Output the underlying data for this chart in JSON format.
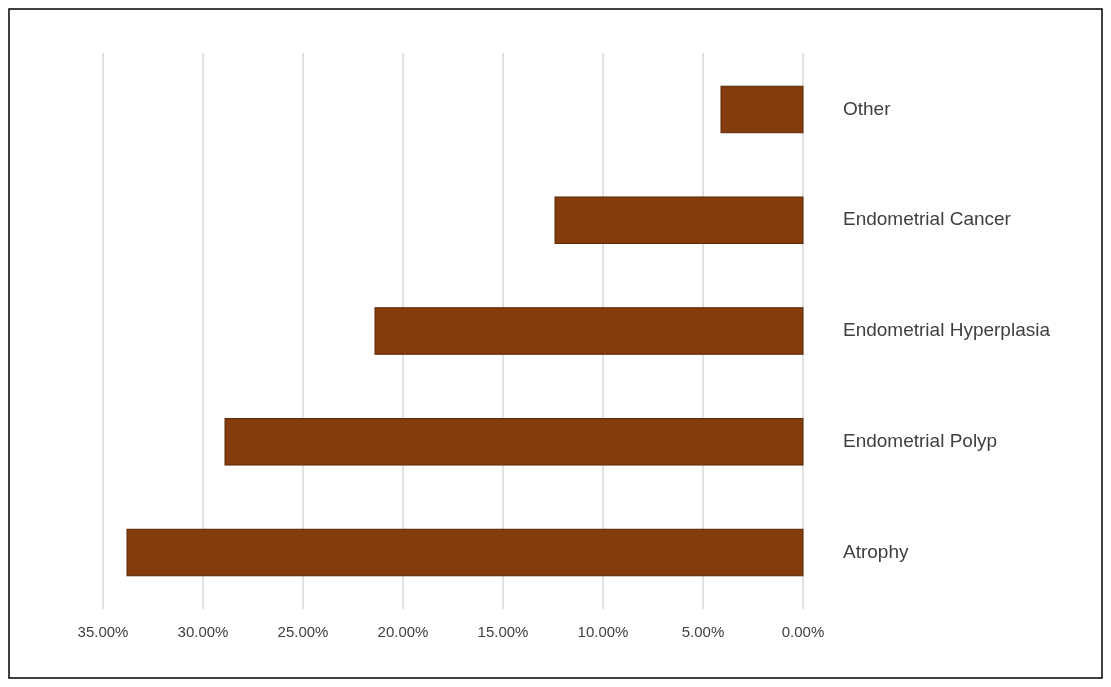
{
  "chart_data": {
    "type": "bar",
    "orientation": "horizontal",
    "categories": [
      "Other",
      "Endometrial Cancer",
      "Endometrial Hyperplasia",
      "Endometrial Polyp",
      "Atrophy"
    ],
    "values": [
      4.1,
      12.4,
      21.4,
      28.9,
      33.8
    ],
    "color": "#843c0c",
    "xlim": [
      35,
      0
    ],
    "xticks": [
      {
        "value": 35,
        "label": "35.00%"
      },
      {
        "value": 30,
        "label": "30.00%"
      },
      {
        "value": 25,
        "label": "25.00%"
      },
      {
        "value": 20,
        "label": "20.00%"
      },
      {
        "value": 15,
        "label": "15.00%"
      },
      {
        "value": 10,
        "label": "10.00%"
      },
      {
        "value": 5,
        "label": "5.00%"
      },
      {
        "value": 0,
        "label": "0.00%"
      }
    ],
    "grid": "x"
  }
}
